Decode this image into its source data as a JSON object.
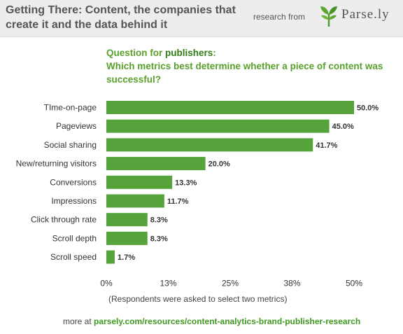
{
  "header": {
    "title": "Getting There: Content, the companies that create it and the data behind it",
    "research_from": "research from",
    "logo_text": "Parse.ly"
  },
  "question": {
    "label_prefix": "Question for ",
    "label_strong": "publishers",
    "label_suffix": ":",
    "text": "Which metrics best determine whether a piece of content was successful?"
  },
  "chart_data": {
    "type": "bar",
    "orientation": "horizontal",
    "categories": [
      "TIme-on-page",
      "Pageviews",
      "Social sharing",
      "New/returning visitors",
      "Conversions",
      "Impressions",
      "Click through rate",
      "Scroll depth",
      "Scroll speed"
    ],
    "values": [
      50.0,
      45.0,
      41.7,
      20.0,
      13.3,
      11.7,
      8.3,
      8.3,
      1.7
    ],
    "value_labels": [
      "50.0%",
      "45.0%",
      "41.7%",
      "20.0%",
      "13.3%",
      "11.7%",
      "8.3%",
      "8.3%",
      "1.7%"
    ],
    "x_ticks": [
      0,
      12.5,
      25,
      37.5,
      50
    ],
    "x_tick_labels": [
      "0%",
      "13%",
      "25%",
      "38%",
      "50%"
    ],
    "xlim": [
      0,
      50
    ],
    "bar_color": "#56a33b",
    "grid": false
  },
  "footnote": "(Respondents were asked to select two metrics)",
  "more": {
    "prefix": "more at ",
    "url": "parsely.com/resources/content-analytics-brand-publisher-research"
  }
}
